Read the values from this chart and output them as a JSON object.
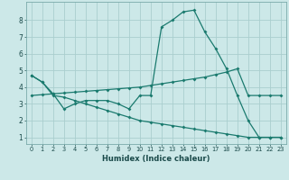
{
  "xlabel": "Humidex (Indice chaleur)",
  "background_color": "#cce8e8",
  "grid_color": "#aacece",
  "line_color": "#1a7a6e",
  "x_ticks": [
    0,
    1,
    2,
    3,
    4,
    5,
    6,
    7,
    8,
    9,
    10,
    11,
    12,
    13,
    14,
    15,
    16,
    17,
    18,
    19,
    20,
    21,
    22,
    23
  ],
  "y_ticks": [
    1,
    2,
    3,
    4,
    5,
    6,
    7,
    8
  ],
  "ylim": [
    0.6,
    9.1
  ],
  "xlim": [
    -0.5,
    23.5
  ],
  "series1_x": [
    0,
    1,
    2,
    3,
    4,
    5,
    6,
    7,
    8,
    9,
    10,
    11,
    12,
    13,
    14,
    15,
    16,
    17,
    18,
    19,
    20,
    21,
    22,
    23
  ],
  "series1_y": [
    4.7,
    4.3,
    3.6,
    2.7,
    3.0,
    3.2,
    3.2,
    3.2,
    3.0,
    2.7,
    3.5,
    3.5,
    7.6,
    8.0,
    8.5,
    8.6,
    7.3,
    6.3,
    5.1,
    3.5,
    2.0,
    1.0,
    1.0,
    1.0
  ],
  "series2_x": [
    0,
    1,
    2,
    3,
    4,
    5,
    6,
    7,
    8,
    9,
    10,
    11,
    12,
    13,
    14,
    15,
    16,
    17,
    18,
    19,
    20,
    21,
    22,
    23
  ],
  "series2_y": [
    3.5,
    3.55,
    3.6,
    3.65,
    3.7,
    3.75,
    3.8,
    3.85,
    3.9,
    3.95,
    4.0,
    4.1,
    4.2,
    4.3,
    4.4,
    4.5,
    4.6,
    4.75,
    4.9,
    5.1,
    3.5,
    3.5,
    3.5,
    3.5
  ],
  "series3_x": [
    0,
    1,
    2,
    3,
    4,
    5,
    6,
    7,
    8,
    9,
    10,
    11,
    12,
    13,
    14,
    15,
    16,
    17,
    18,
    19,
    20,
    21,
    22,
    23
  ],
  "series3_y": [
    4.7,
    4.3,
    3.5,
    3.4,
    3.2,
    3.0,
    2.8,
    2.6,
    2.4,
    2.2,
    2.0,
    1.9,
    1.8,
    1.7,
    1.6,
    1.5,
    1.4,
    1.3,
    1.2,
    1.1,
    1.0,
    1.0,
    1.0,
    1.0
  ]
}
